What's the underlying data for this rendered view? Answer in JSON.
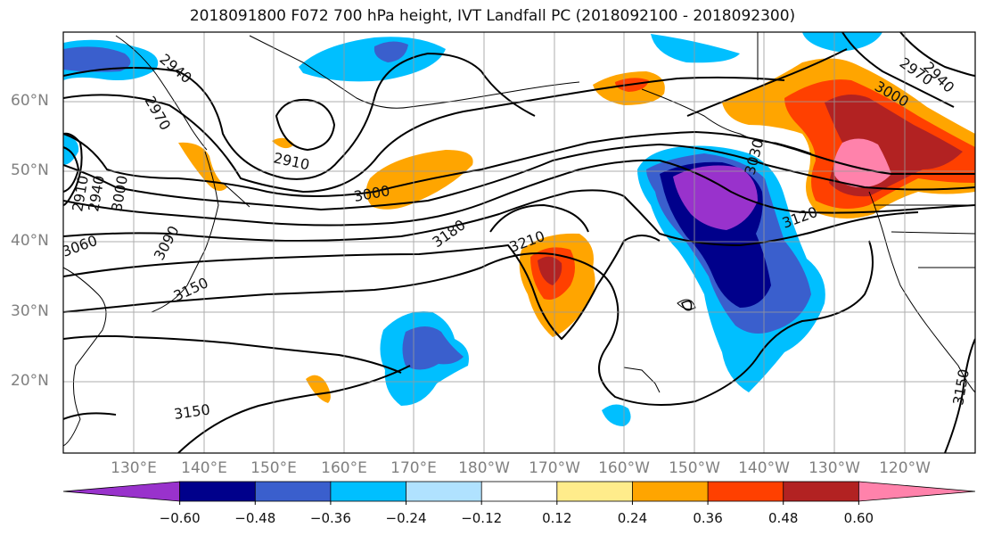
{
  "title": "2018091800 F072 700 hPa height, IVT Landfall PC (2018092100 - 2018092300)",
  "lat_labels": [
    "60°N",
    "50°N",
    "40°N",
    "30°N",
    "20°N"
  ],
  "lon_labels": [
    "130°E",
    "140°E",
    "150°E",
    "160°E",
    "170°E",
    "180°W",
    "170°W",
    "160°W",
    "150°W",
    "140°W",
    "130°W",
    "120°W"
  ],
  "contour_labels": [
    "2940",
    "2970",
    "2910",
    "3000",
    "3090",
    "3150",
    "3180",
    "3210",
    "3030",
    "3120",
    "3000",
    "2970",
    "2940",
    "3150",
    "3150",
    "3060",
    "2910",
    "2940",
    "3000"
  ],
  "colorbar": {
    "colors": [
      "#9932cc",
      "#00008b",
      "#3a5fcd",
      "#00bfff",
      "#b0e2ff",
      "#ffffff",
      "#ffec8b",
      "#ffa500",
      "#ff4000",
      "#b22222",
      "#ff82ab"
    ],
    "tick_labels": [
      "−0.60",
      "−0.48",
      "−0.36",
      "−0.24",
      "−0.12",
      "0.12",
      "0.24",
      "0.36",
      "0.48",
      "0.60"
    ]
  }
}
